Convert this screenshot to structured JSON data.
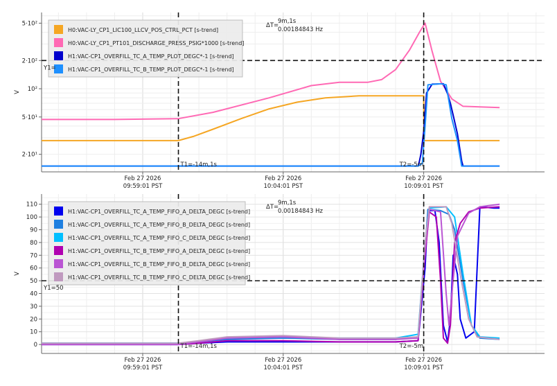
{
  "chart_data": [
    {
      "type": "line",
      "ylabel": "V",
      "yscale": "log",
      "ylim": [
        13,
        650
      ],
      "yticks": [
        {
          "value": 500,
          "label": "5·10²"
        },
        {
          "value": 200,
          "label": "2·10²"
        },
        {
          "value": 100,
          "label": "10²"
        },
        {
          "value": 50,
          "label": "5·10¹"
        },
        {
          "value": 20,
          "label": "2·10¹"
        }
      ],
      "xticks": [
        {
          "t": 0,
          "line1": "Feb 27 2026",
          "line2": "09:59:01 PST"
        },
        {
          "t": 5,
          "line1": "Feb 27 2026",
          "line2": "10:04:01 PST"
        },
        {
          "t": 10,
          "line1": "Feb 27 2026",
          "line2": "10:09:01 PST"
        }
      ],
      "xlim": [
        -3.6,
        14.3
      ],
      "grid": true,
      "legend_position": "top-left",
      "cursor_h": {
        "value": 200,
        "label": "Y1="
      },
      "cursor_t1": {
        "t": 1.27,
        "label": "T1=-14m,1s"
      },
      "cursor_t2": {
        "t": 10.0,
        "label": "T2=-5m"
      },
      "delta": {
        "label": "ΔT=",
        "value": "9m,1s",
        "freq": "0.00184843 Hz"
      },
      "series": [
        {
          "name": "H0:VAC-LY_CP1_LIC100_LLCV_POS_CTRL_PCT [s-trend]",
          "color": "#F5A623",
          "points": [
            [
              -3.6,
              28
            ],
            [
              1.27,
              28
            ],
            [
              1.8,
              31
            ],
            [
              2.5,
              37
            ],
            [
              3.5,
              48
            ],
            [
              4.5,
              61
            ],
            [
              5.5,
              72
            ],
            [
              6.5,
              80
            ],
            [
              7.7,
              84
            ],
            [
              8.5,
              84
            ],
            [
              10.0,
              84
            ],
            [
              10.01,
              28
            ],
            [
              12.7,
              28
            ]
          ]
        },
        {
          "name": "H0:VAC-LY_CP1_PT101_DISCHARGE_PRESS_PSIG*1000 [s-trend]",
          "color": "#FF69B4",
          "points": [
            [
              -3.6,
              47
            ],
            [
              -1,
              47
            ],
            [
              1.27,
              48
            ],
            [
              2.5,
              56
            ],
            [
              4.5,
              80
            ],
            [
              6,
              108
            ],
            [
              7,
              117
            ],
            [
              8,
              117
            ],
            [
              8.5,
              125
            ],
            [
              9,
              160
            ],
            [
              9.5,
              260
            ],
            [
              9.85,
              400
            ],
            [
              10.05,
              500
            ],
            [
              10.3,
              250
            ],
            [
              10.6,
              120
            ],
            [
              11,
              78
            ],
            [
              11.4,
              65
            ],
            [
              12,
              64
            ],
            [
              12.7,
              63
            ]
          ]
        },
        {
          "name": "H1:VAC-CP1_OVERFILL_TC_A_TEMP_PLOT_DEGC*-1 [s-trend]",
          "color": "#0000CC",
          "points": [
            [
              -3.6,
              15
            ],
            [
              9.8,
              15
            ],
            [
              9.85,
              17
            ],
            [
              9.9,
              20
            ],
            [
              10.0,
              35
            ],
            [
              10.1,
              90
            ],
            [
              10.3,
              112
            ],
            [
              10.7,
              113
            ],
            [
              10.85,
              88
            ],
            [
              10.95,
              70
            ],
            [
              11.05,
              52
            ],
            [
              11.2,
              33
            ],
            [
              11.35,
              17
            ],
            [
              11.4,
              15
            ],
            [
              12.7,
              15
            ]
          ]
        },
        {
          "name": "H1:VAC-CP1_OVERFILL_TC_B_TEMP_PLOT_DEGC*-1 [s-trend]",
          "color": "#1E90FF",
          "points": [
            [
              -3.6,
              15
            ],
            [
              9.8,
              15
            ],
            [
              9.95,
              16
            ],
            [
              10.05,
              40
            ],
            [
              10.15,
              110
            ],
            [
              10.6,
              113
            ],
            [
              10.8,
              110
            ],
            [
              11.0,
              48
            ],
            [
              11.2,
              28
            ],
            [
              11.35,
              15
            ],
            [
              12.7,
              15
            ]
          ]
        }
      ]
    },
    {
      "type": "line",
      "ylabel": "V",
      "ylim": [
        -7,
        118
      ],
      "yticks": [
        {
          "value": 110,
          "label": "110"
        },
        {
          "value": 100,
          "label": "100"
        },
        {
          "value": 90,
          "label": "90"
        },
        {
          "value": 80,
          "label": "80"
        },
        {
          "value": 70,
          "label": "70"
        },
        {
          "value": 60,
          "label": "60"
        },
        {
          "value": 50,
          "label": "50"
        },
        {
          "value": 40,
          "label": "40"
        },
        {
          "value": 30,
          "label": "30"
        },
        {
          "value": 20,
          "label": "20"
        },
        {
          "value": 10,
          "label": "10"
        },
        {
          "value": 0,
          "label": "0"
        }
      ],
      "xticks": [
        {
          "t": 0,
          "line1": "Feb 27 2026",
          "line2": "09:59:01 PST"
        },
        {
          "t": 5,
          "line1": "Feb 27 2026",
          "line2": "10:04:01 PST"
        },
        {
          "t": 10,
          "line1": "Feb 27 2026",
          "line2": "10:09:01 PST"
        }
      ],
      "xlim": [
        -3.6,
        14.3
      ],
      "grid": true,
      "legend_position": "top-left",
      "cursor_h": {
        "value": 50,
        "label": "Y1=50"
      },
      "cursor_t1": {
        "t": 1.27,
        "label": "T1=-14m,1s"
      },
      "cursor_t2": {
        "t": 10.0,
        "label": "T2=-5m"
      },
      "delta": {
        "label": "ΔT=",
        "value": "9m,1s",
        "freq": "0.00184843 Hz"
      },
      "series": [
        {
          "name": "H1:VAC-CP1_OVERFILL_TC_A_TEMP_FIFO_A_DELTA_DEGC [s-trend]",
          "color": "#0000EE",
          "points": [
            [
              -3.6,
              0
            ],
            [
              1.27,
              0
            ],
            [
              2,
              1
            ],
            [
              3,
              2
            ],
            [
              5,
              2
            ],
            [
              7,
              2
            ],
            [
              9,
              2
            ],
            [
              9.8,
              3
            ],
            [
              10.05,
              60
            ],
            [
              10.15,
              105
            ],
            [
              10.4,
              105
            ],
            [
              10.55,
              80
            ],
            [
              10.7,
              15
            ],
            [
              10.85,
              2
            ],
            [
              10.95,
              20
            ],
            [
              11.05,
              70
            ],
            [
              11.2,
              55
            ],
            [
              11.3,
              20
            ],
            [
              11.5,
              5
            ],
            [
              11.8,
              10
            ],
            [
              12.0,
              108
            ],
            [
              12.5,
              107
            ],
            [
              12.7,
              107
            ]
          ]
        },
        {
          "name": "H1:VAC-CP1_OVERFILL_TC_A_TEMP_FIFO_B_DELTA_DEGC [s-trend]",
          "color": "#1E7FE0",
          "points": [
            [
              -3.6,
              1
            ],
            [
              1.27,
              1
            ],
            [
              2,
              2
            ],
            [
              3,
              4
            ],
            [
              5,
              5
            ],
            [
              7,
              4
            ],
            [
              9,
              4
            ],
            [
              9.8,
              6
            ],
            [
              10.05,
              75
            ],
            [
              10.15,
              106
            ],
            [
              10.6,
              105
            ],
            [
              10.9,
              102
            ],
            [
              11.1,
              90
            ],
            [
              11.4,
              50
            ],
            [
              11.7,
              15
            ],
            [
              12.0,
              5
            ],
            [
              12.7,
              4
            ]
          ]
        },
        {
          "name": "H1:VAC-CP1_OVERFILL_TC_A_TEMP_FIFO_C_DELTA_DEGC [s-trend]",
          "color": "#00BFFF",
          "points": [
            [
              -3.6,
              1
            ],
            [
              1.27,
              1
            ],
            [
              2,
              2
            ],
            [
              3,
              5
            ],
            [
              5,
              6
            ],
            [
              7,
              5
            ],
            [
              9,
              5
            ],
            [
              9.8,
              8
            ],
            [
              10.05,
              80
            ],
            [
              10.2,
              107
            ],
            [
              10.8,
              108
            ],
            [
              11.1,
              100
            ],
            [
              11.4,
              55
            ],
            [
              11.7,
              15
            ],
            [
              12.0,
              6
            ],
            [
              12.7,
              5
            ]
          ]
        },
        {
          "name": "H1:VAC-CP1_OVERFILL_TC_B_TEMP_FIFO_A_DELTA_DEGC [s-trend]",
          "color": "#B000B0",
          "points": [
            [
              -3.6,
              0
            ],
            [
              1.27,
              0
            ],
            [
              2,
              1
            ],
            [
              3,
              3
            ],
            [
              5,
              3
            ],
            [
              7,
              2
            ],
            [
              9,
              2
            ],
            [
              9.8,
              3
            ],
            [
              10.05,
              70
            ],
            [
              10.2,
              104
            ],
            [
              10.45,
              100
            ],
            [
              10.6,
              50
            ],
            [
              10.7,
              5
            ],
            [
              10.85,
              1
            ],
            [
              10.95,
              15
            ],
            [
              11.1,
              80
            ],
            [
              11.3,
              95
            ],
            [
              11.6,
              104
            ],
            [
              12.0,
              107
            ],
            [
              12.7,
              108
            ]
          ]
        },
        {
          "name": "H1:VAC-CP1_OVERFILL_TC_B_TEMP_FIFO_B_DELTA_DEGC [s-trend]",
          "color": "#BA55D3",
          "points": [
            [
              -3.6,
              0
            ],
            [
              1.27,
              0
            ],
            [
              2,
              2
            ],
            [
              3,
              5
            ],
            [
              5,
              6
            ],
            [
              7,
              4
            ],
            [
              9,
              4
            ],
            [
              9.8,
              5
            ],
            [
              10.05,
              75
            ],
            [
              10.2,
              106
            ],
            [
              10.6,
              104
            ],
            [
              10.8,
              40
            ],
            [
              10.9,
              15
            ],
            [
              11.0,
              40
            ],
            [
              11.2,
              85
            ],
            [
              11.6,
              103
            ],
            [
              12.0,
              108
            ],
            [
              12.7,
              110
            ]
          ]
        },
        {
          "name": "H1:VAC-CP1_OVERFILL_TC_B_TEMP_FIFO_C_DELTA_DEGC [s-trend]",
          "color": "#C09ABF",
          "points": [
            [
              -3.6,
              1
            ],
            [
              1.27,
              1
            ],
            [
              2,
              3
            ],
            [
              3,
              6
            ],
            [
              5,
              7
            ],
            [
              7,
              5
            ],
            [
              9,
              5
            ],
            [
              9.8,
              6
            ],
            [
              10.05,
              80
            ],
            [
              10.2,
              108
            ],
            [
              10.8,
              108
            ],
            [
              11.0,
              95
            ],
            [
              11.3,
              55
            ],
            [
              11.6,
              20
            ],
            [
              11.9,
              6
            ],
            [
              12.7,
              4
            ]
          ]
        }
      ]
    }
  ]
}
